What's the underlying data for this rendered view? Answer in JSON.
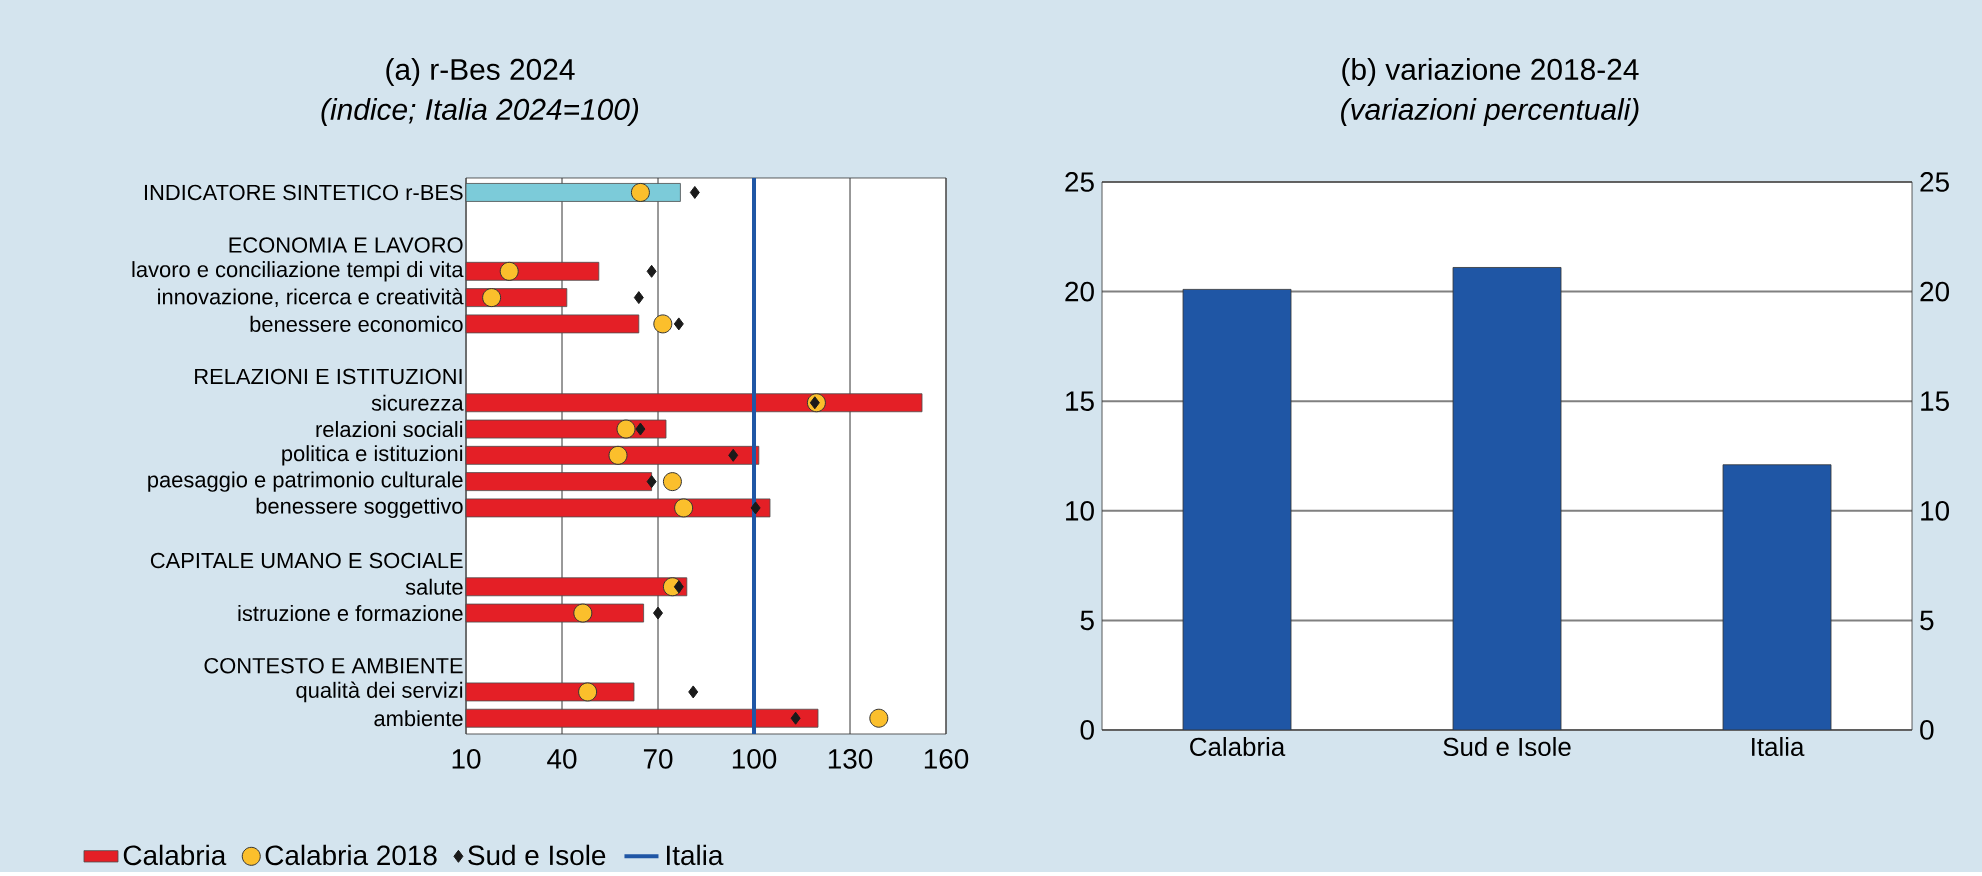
{
  "chart_data": [
    {
      "type": "bar",
      "title": "(a) r-Bes 2024",
      "subtitle": "(indice; Italia 2024=100)",
      "orientation": "horizontal",
      "categories": [
        "INDICATORE SINTETICO r-BES",
        null,
        "ECONOMIA E LAVORO",
        "lavoro e conciliazione tempi di vita",
        "innovazione, ricerca e creatività",
        "benessere economico",
        null,
        "RELAZIONI E ISTITUZIONI",
        "sicurezza",
        "relazioni sociali",
        "politica e istituzioni",
        "paesaggio e patrimonio culturale",
        "benessere soggettivo",
        null,
        "CAPITALE UMANO E SOCIALE",
        "salute",
        "istruzione e formazione",
        null,
        "CONTESTO E AMBIENTE",
        "qualità dei servizi",
        "ambiente"
      ],
      "series": [
        {
          "name": "Calabria",
          "type": "bar",
          "color": "#e41f26",
          "colors": [
            "#7ccbd9",
            null,
            null,
            "#e41f26",
            "#e41f26",
            "#e41f26",
            null,
            null,
            "#e41f26",
            "#e41f26",
            "#e41f26",
            "#e41f26",
            "#e41f26",
            null,
            null,
            "#e41f26",
            "#e41f26",
            null,
            null,
            "#e41f26",
            "#e41f26"
          ],
          "values": [
            77,
            null,
            null,
            51.5,
            41.5,
            64,
            null,
            null,
            152.5,
            72.5,
            101.5,
            68,
            105,
            null,
            null,
            79,
            65.5,
            null,
            null,
            62.5,
            120
          ]
        },
        {
          "name": "Calabria 2018",
          "type": "scatter",
          "marker": "circle",
          "color": "#fbbf2c",
          "values": [
            64.5,
            null,
            null,
            23.5,
            18,
            71.5,
            null,
            null,
            119.5,
            60,
            57.5,
            74.5,
            78,
            null,
            null,
            74.5,
            46.5,
            null,
            null,
            48,
            139
          ]
        },
        {
          "name": "Sud e Isole",
          "type": "scatter",
          "marker": "diamond",
          "color": "#1a1a1a",
          "values": [
            81.5,
            null,
            null,
            68,
            64,
            76.5,
            null,
            null,
            119,
            64.5,
            93.5,
            68,
            100.5,
            null,
            null,
            76.5,
            70,
            null,
            null,
            81,
            113
          ]
        }
      ],
      "ref_lines": [
        {
          "axis": "x",
          "value": 100,
          "label": "Italia",
          "color": "#1f56a5"
        }
      ],
      "xlim": [
        10,
        160
      ],
      "xticks": [
        10,
        40,
        70,
        100,
        130,
        160
      ],
      "grid": "x",
      "legend": "bottom"
    },
    {
      "type": "bar",
      "title": "(b) variazione 2018-24",
      "subtitle": "(variazioni percentuali)",
      "categories": [
        "Calabria",
        "Sud e Isole",
        "Italia"
      ],
      "values": [
        20.1,
        21.1,
        12.1
      ],
      "color": "#1f56a5",
      "ylim": [
        0,
        25
      ],
      "yticks": [
        0,
        5,
        10,
        15,
        20,
        25
      ],
      "y2lim": [
        0,
        25
      ],
      "y2ticks": [
        0,
        5,
        10,
        15,
        20,
        25
      ],
      "grid": "y"
    }
  ]
}
